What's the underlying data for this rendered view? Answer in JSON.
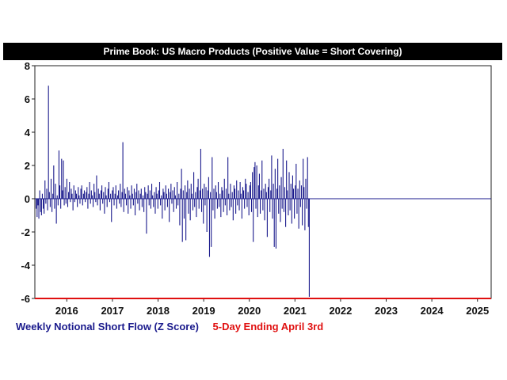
{
  "chart_data": {
    "type": "bar",
    "title": "Prime Book: US Macro Products (Positive Value = Short Covering)",
    "xlabel": "",
    "ylabel": "",
    "ylim": [
      -6,
      8
    ],
    "yticks": [
      -6,
      -4,
      -2,
      0,
      2,
      4,
      6,
      8
    ],
    "xlim": [
      2015.3,
      2025.3
    ],
    "xticks": [
      "2016",
      "2017",
      "2018",
      "2019",
      "2020",
      "2021",
      "2022",
      "2023",
      "2024",
      "2025"
    ],
    "grid": false,
    "legend_position": "bottom-left",
    "series": [
      {
        "name": "Weekly Notional Short Flow (Z Score)",
        "color": "#1a1a8c",
        "x_start": 2015.33,
        "step_years": 0.01918,
        "values": [
          -0.6,
          -1.1,
          -0.4,
          -1.2,
          0.5,
          -0.8,
          -1.0,
          0.3,
          -0.6,
          -0.9,
          1.1,
          -0.3,
          0.6,
          -0.7,
          6.8,
          0.4,
          -0.5,
          1.2,
          -0.8,
          0.3,
          2.0,
          -0.6,
          0.9,
          -1.5,
          0.2,
          -0.4,
          2.9,
          0.8,
          -0.6,
          2.4,
          0.5,
          2.3,
          -0.4,
          0.7,
          -0.3,
          1.2,
          -0.5,
          0.4,
          1.0,
          -0.2,
          0.6,
          0.3,
          -0.7,
          0.8,
          -0.2,
          0.5,
          0.3,
          -0.5,
          0.7,
          0.2,
          -0.3,
          0.6,
          0.8,
          -0.4,
          0.3,
          0.5,
          -0.2,
          0.4,
          0.7,
          -0.6,
          0.3,
          1.0,
          -0.3,
          0.5,
          0.2,
          -0.5,
          0.9,
          0.4,
          -0.2,
          1.4,
          -0.4,
          0.6,
          0.3,
          -0.7,
          0.5,
          0.8,
          -0.3,
          0.4,
          -0.9,
          0.7,
          0.2,
          -0.5,
          0.6,
          1.0,
          -0.2,
          0.3,
          -1.4,
          0.5,
          0.7,
          -0.4,
          0.3,
          0.8,
          -0.6,
          0.2,
          0.5,
          -0.3,
          0.9,
          -0.5,
          0.4,
          3.4,
          -0.8,
          0.6,
          0.3,
          -0.4,
          0.7,
          -0.9,
          0.5,
          0.2,
          -0.6,
          0.8,
          0.3,
          -0.4,
          0.6,
          -1.0,
          0.4,
          0.9,
          -0.3,
          0.5,
          -0.7,
          0.3,
          0.6,
          -0.5,
          0.2,
          -0.8,
          0.7,
          0.4,
          -2.1,
          0.3,
          0.8,
          -0.4,
          0.5,
          -0.6,
          0.9,
          0.2,
          -0.5,
          0.4,
          -0.9,
          0.7,
          0.3,
          -0.6,
          0.5,
          1.0,
          -0.4,
          0.2,
          -1.2,
          0.6,
          0.4,
          -0.7,
          0.8,
          0.3,
          -0.5,
          0.6,
          -1.4,
          0.4,
          0.9,
          -0.3,
          0.5,
          -0.8,
          0.7,
          0.2,
          -0.6,
          1.0,
          -0.4,
          0.3,
          -1.6,
          0.6,
          1.8,
          -2.6,
          0.5,
          -1.2,
          0.8,
          -2.5,
          0.4,
          1.1,
          -0.9,
          0.6,
          -1.3,
          0.9,
          0.3,
          -0.7,
          1.6,
          -0.5,
          0.4,
          -1.1,
          0.7,
          1.2,
          -0.6,
          0.5,
          3.0,
          -0.8,
          0.6,
          -1.5,
          0.9,
          -0.4,
          0.7,
          -2.0,
          0.5,
          1.3,
          -3.5,
          0.4,
          -2.9,
          2.5,
          -0.7,
          0.6,
          -1.2,
          0.8,
          0.4,
          -0.6,
          1.0,
          -0.5,
          0.3,
          -1.1,
          0.7,
          0.5,
          -0.8,
          1.2,
          -0.4,
          0.6,
          -1.0,
          2.5,
          0.3,
          -0.7,
          0.9,
          -0.5,
          0.4,
          -1.3,
          0.8,
          0.6,
          -0.9,
          1.1,
          -0.4,
          0.5,
          -0.7,
          1.0,
          0.3,
          -1.2,
          0.7,
          0.5,
          -0.6,
          1.2,
          0.9,
          -0.5,
          0.4,
          -1.0,
          0.8,
          1.0,
          -0.8,
          1.6,
          -2.6,
          1.9,
          2.2,
          -0.6,
          2.0,
          -1.1,
          0.8,
          1.5,
          -0.9,
          0.5,
          2.3,
          -0.7,
          0.6,
          -1.3,
          0.9,
          0.4,
          -2.3,
          0.7,
          1.2,
          -0.8,
          0.5,
          2.6,
          -1.2,
          0.9,
          -2.9,
          1.8,
          -3.0,
          0.6,
          2.4,
          -0.9,
          0.8,
          -1.4,
          1.3,
          -0.6,
          3.0,
          -0.8,
          0.7,
          -1.7,
          2.3,
          0.5,
          -1.0,
          1.6,
          -0.7,
          0.9,
          -1.5,
          1.4,
          0.6,
          -1.2,
          0.8,
          2.1,
          -0.9,
          0.6,
          -1.8,
          1.1,
          -0.5,
          0.8,
          -1.6,
          2.4,
          0.7,
          -1.9,
          1.2,
          -0.6,
          2.5,
          -1.7,
          -5.9
        ]
      }
    ],
    "highlight": {
      "name": "5-Day Ending April 3rd",
      "color": "#e01010"
    }
  }
}
